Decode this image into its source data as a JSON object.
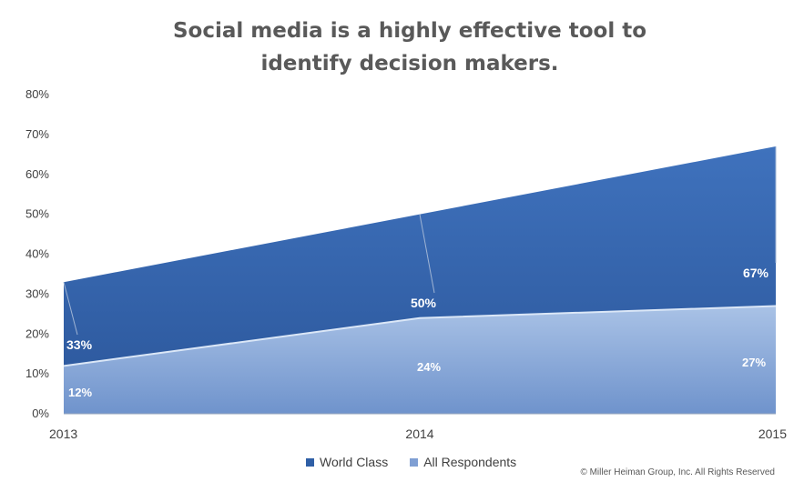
{
  "chart_data": {
    "type": "area",
    "title": [
      "Social media is a highly effective tool to",
      "identify decision makers."
    ],
    "x": [
      "2013",
      "2014",
      "2015"
    ],
    "ylim": [
      0,
      80
    ],
    "yticks": [
      "0%",
      "10%",
      "20%",
      "30%",
      "40%",
      "50%",
      "60%",
      "70%",
      "80%"
    ],
    "ytick_values": [
      0,
      10,
      20,
      30,
      40,
      50,
      60,
      70,
      80
    ],
    "series": [
      {
        "name": "World Class",
        "values": [
          33,
          50,
          67
        ],
        "labels": [
          "33%",
          "50%",
          "67%"
        ],
        "color": "#3d6db5"
      },
      {
        "name": "All Respondents",
        "values": [
          12,
          24,
          27
        ],
        "labels": [
          "12%",
          "24%",
          "27%"
        ],
        "color": "#95b2de"
      }
    ],
    "legend_position": "bottom",
    "grid": false
  },
  "footer": {
    "copyright": "© Miller Heiman Group, Inc. All Rights Reserved"
  }
}
